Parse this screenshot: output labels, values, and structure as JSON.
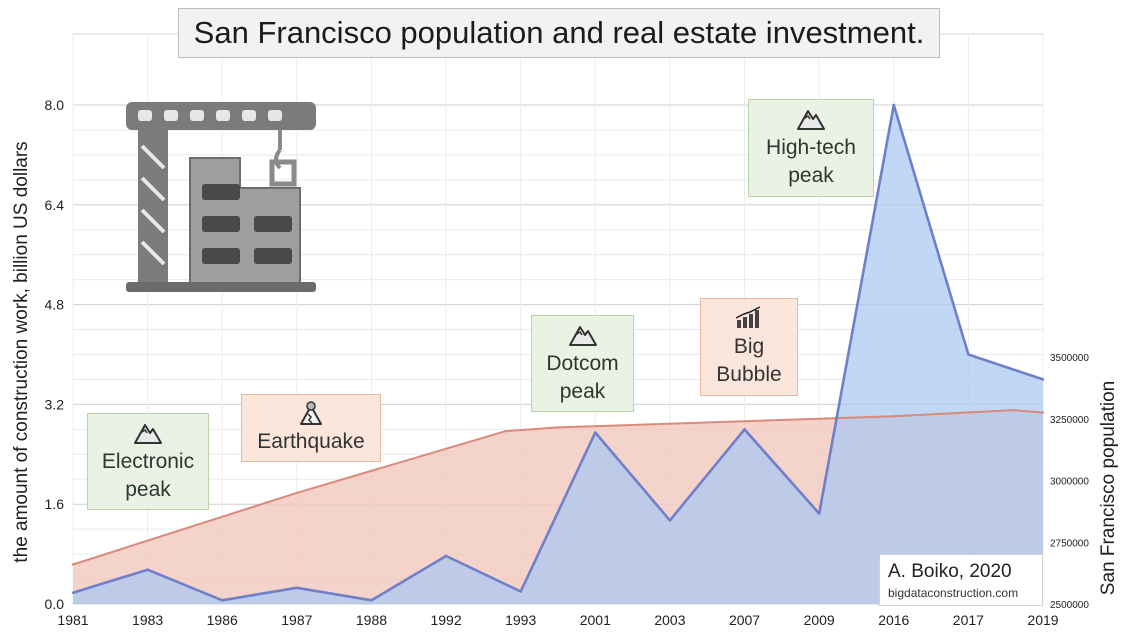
{
  "title": "San Francisco population and real estate investment.",
  "chart_data": {
    "type": "area",
    "categories": [
      "1981",
      "1983",
      "1986",
      "1987",
      "1988",
      "1992",
      "1993",
      "2001",
      "2003",
      "2007",
      "2009",
      "2016",
      "2017",
      "2019"
    ],
    "series": [
      {
        "name": "the amount of construction work, billion US dollars",
        "axis": "left",
        "color": "#6f7fc9",
        "fill": "#a9c7f3",
        "x": [
          0,
          1,
          2,
          3,
          4,
          5,
          6,
          7,
          8,
          9,
          10,
          11,
          12,
          13
        ],
        "values": [
          0.18,
          0.55,
          0.06,
          0.26,
          0.06,
          0.77,
          0.2,
          2.75,
          1.34,
          2.8,
          1.45,
          8.0,
          4.0,
          3.6
        ]
      },
      {
        "name": "San Francisco population",
        "axis": "right",
        "color": "#d98a7a",
        "fill": "#f1c7bc",
        "x": [
          0,
          3,
          5.8,
          6.5,
          11,
          12.6,
          13
        ],
        "values": [
          2660000,
          2950000,
          3200000,
          3215000,
          3260000,
          3285000,
          3275000
        ]
      }
    ],
    "ylabel": "the amount of construction work, billion US dollars",
    "ylim": [
      0,
      8.0
    ],
    "yticks": [
      "0.0",
      "1.6",
      "3.2",
      "4.8",
      "6.4",
      "8.0"
    ],
    "y2label": "San Francisco  population",
    "y2lim": [
      2500000,
      3500000
    ],
    "y2ticks": [
      "2500000",
      "2750000",
      "3000000",
      "3250000",
      "3500000"
    ],
    "grid": true
  },
  "annotations": [
    {
      "key": "electronic",
      "label_lines": [
        "Electronic",
        "peak"
      ],
      "icon": "mountain-peak-icon"
    },
    {
      "key": "earthquake",
      "label_lines": [
        "Earthquake"
      ],
      "icon": "earthquake-icon"
    },
    {
      "key": "dotcom",
      "label_lines": [
        "Dotcom",
        "peak"
      ],
      "icon": "mountain-peak-icon"
    },
    {
      "key": "bubble",
      "label_lines": [
        "Big",
        "Bubble"
      ],
      "icon": "rising-buildings-icon"
    },
    {
      "key": "hightech",
      "label_lines": [
        "High-tech",
        "peak"
      ],
      "icon": "mountain-peak-icon"
    }
  ],
  "credit": {
    "author": "A. Boiko, 2020",
    "site": "bigdataconstruction.com"
  },
  "colors": {
    "green_box": "#eaf3e3",
    "peach_box": "#fbe6dc",
    "title_box": "#f2f2f2"
  }
}
